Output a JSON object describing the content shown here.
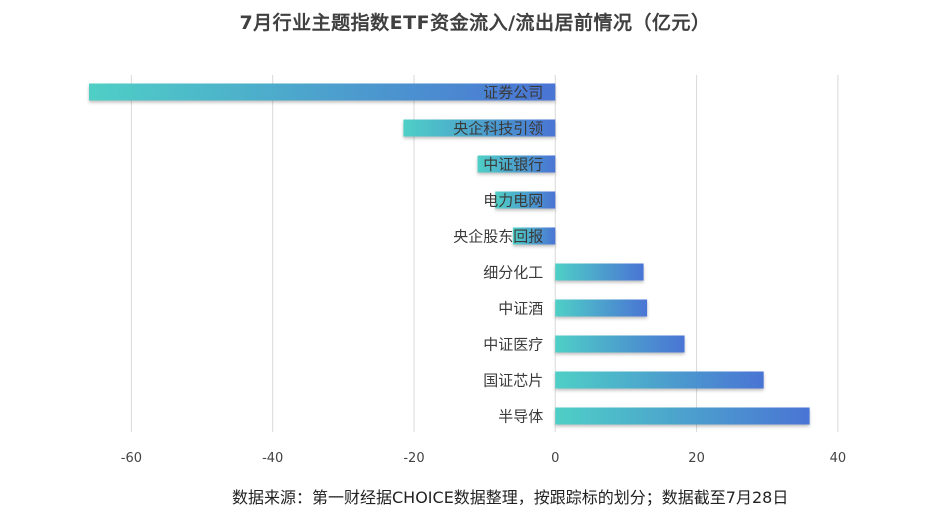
{
  "chart_data": {
    "type": "bar",
    "orientation": "horizontal",
    "title": "7月行业主题指数ETF资金流入/流出居前情况（亿元）",
    "categories": [
      "证券公司",
      "央企科技引领",
      "中证银行",
      "电力电网",
      "央企股东回报",
      "细分化工",
      "中证酒",
      "中证医疗",
      "国证芯片",
      "半导体"
    ],
    "values": [
      -66,
      -21.5,
      -11,
      -8.5,
      -6,
      12.5,
      13,
      18.3,
      29.5,
      36
    ],
    "xlim": [
      -66,
      42
    ],
    "xticks": [
      -60,
      -40,
      -20,
      0,
      20,
      40
    ],
    "grid": true,
    "bar_gradient": [
      "#4fcfc6",
      "#4a74d4"
    ]
  },
  "source_note": "数据来源：第一财经据CHOICE数据整理，按跟踪标的划分；数据截至7月28日"
}
